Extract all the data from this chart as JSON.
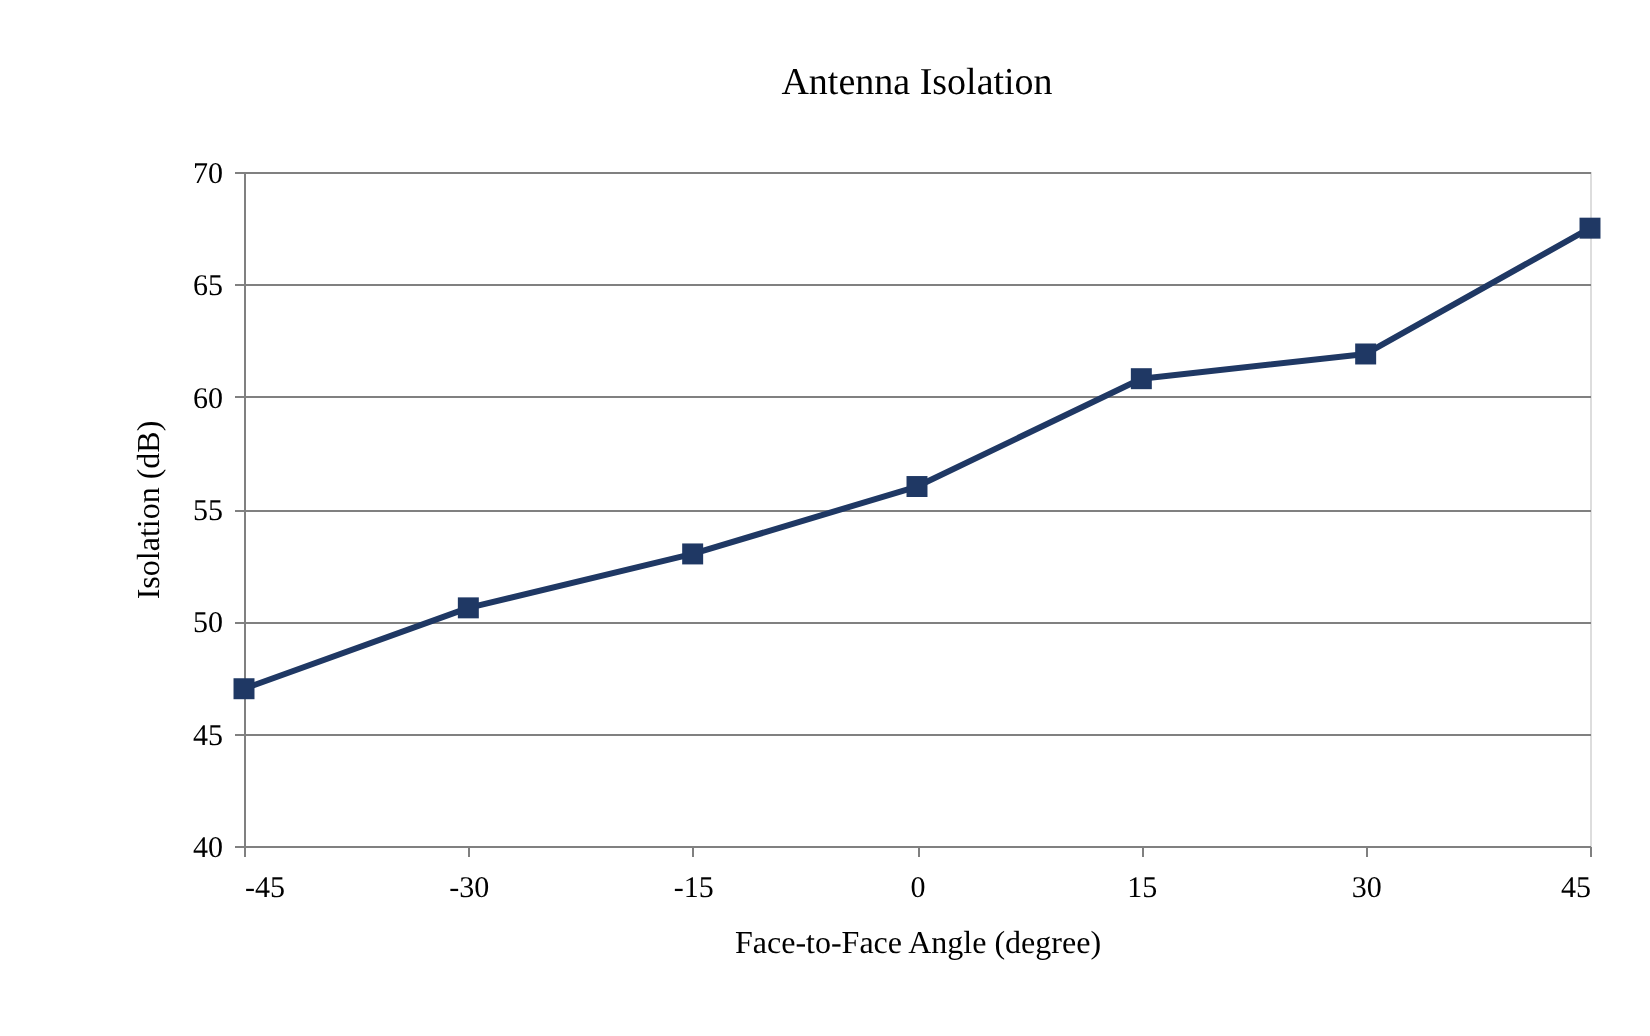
{
  "chart_data": {
    "type": "line",
    "title": "Antenna Isolation",
    "xlabel": "Face-to-Face Angle (degree)",
    "ylabel": "Isolation (dB)",
    "x": [
      -45,
      -30,
      -15,
      0,
      15,
      30,
      45
    ],
    "series": [
      {
        "color": "#1f3864",
        "values": [
          47,
          50.6,
          53,
          56,
          60.8,
          61.9,
          67.5
        ]
      }
    ],
    "xlim": [
      -45,
      45
    ],
    "xticks": [
      -45,
      -30,
      -15,
      0,
      15,
      30,
      45
    ],
    "ylim": [
      40,
      70
    ],
    "yticks": [
      40,
      45,
      50,
      55,
      60,
      65,
      70
    ],
    "grid": "y",
    "marker": "square",
    "line_style": "solid"
  }
}
